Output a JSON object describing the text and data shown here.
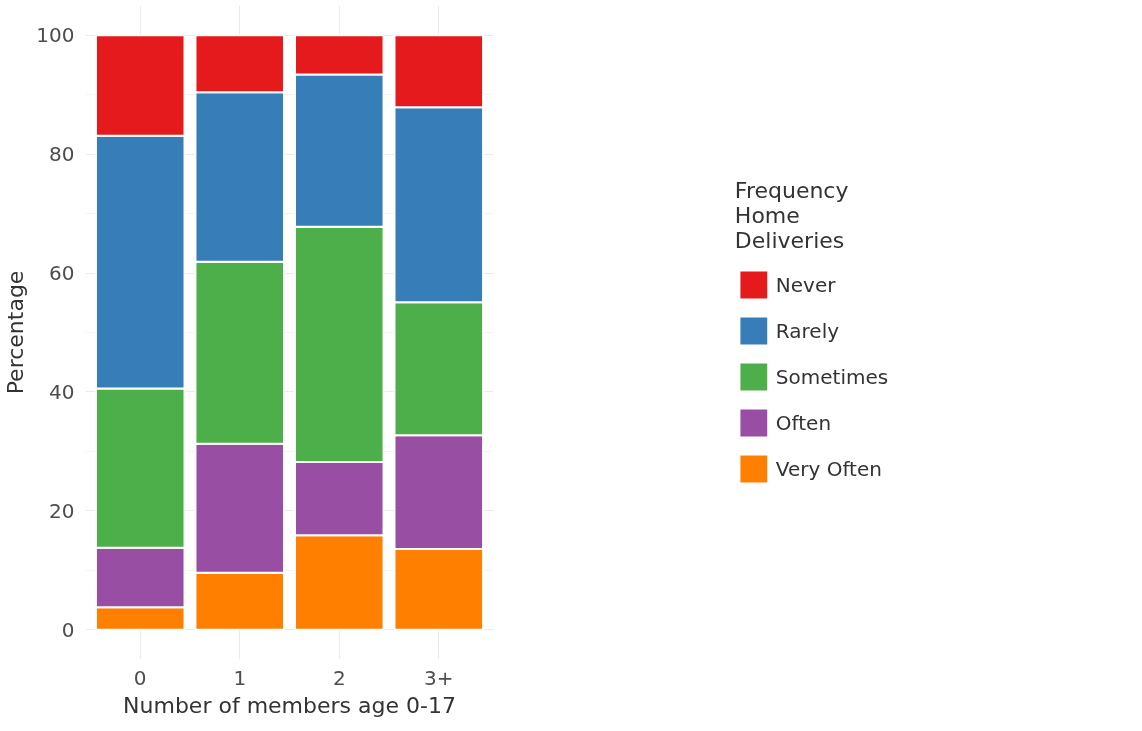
{
  "chart_data": {
    "type": "bar",
    "stacked": true,
    "xlabel": "Number of members age 0-17",
    "ylabel": "Percentage",
    "legend_title": "Frequency Home Deliveries",
    "categories": [
      "0",
      "1",
      "2",
      "3+"
    ],
    "series": [
      {
        "name": "Very Often",
        "color": "#ff7f00",
        "values": [
          3.8,
          9.6,
          15.9,
          13.6
        ]
      },
      {
        "name": "Often",
        "color": "#984ea3",
        "values": [
          10.0,
          21.7,
          12.3,
          19.1
        ]
      },
      {
        "name": "Sometimes",
        "color": "#4daf4a",
        "values": [
          26.8,
          30.6,
          39.6,
          22.4
        ]
      },
      {
        "name": "Rarely",
        "color": "#377eb8",
        "values": [
          42.5,
          28.5,
          25.6,
          32.8
        ]
      },
      {
        "name": "Never",
        "color": "#e41a1c",
        "values": [
          16.9,
          9.6,
          6.6,
          12.1
        ]
      }
    ],
    "ylim": [
      -5,
      105
    ],
    "yticks": [
      0,
      {
        "value": 10,
        "label": null
      },
      20,
      {
        "value": 30,
        "label": null
      },
      40,
      {
        "value": 50,
        "label": null
      },
      60,
      {
        "value": 70,
        "label": null
      },
      80,
      {
        "value": 90,
        "label": null
      },
      100
    ],
    "grid": true,
    "legend": "right"
  }
}
